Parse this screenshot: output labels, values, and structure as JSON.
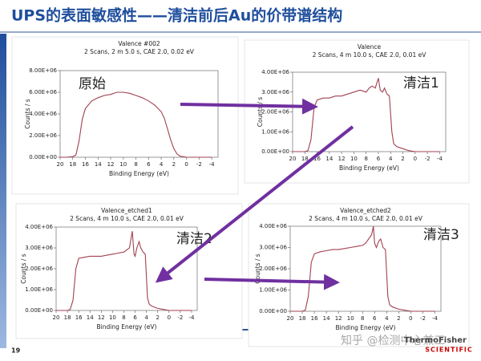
{
  "slide": {
    "title": "UPS的表面敏感性——清洁前后Au的价带谱结构",
    "page_number": "19",
    "watermark": "知乎 @检测中心兼工",
    "logo": "ThermoFisher",
    "logo_sub": "SCIENTIFIC"
  },
  "chart_data": [
    {
      "type": "line",
      "title": "Valence #002",
      "subtitle": "2 Scans,  2 m 5.0 s,  CAE 2.0,  0.02 eV",
      "xlabel": "Binding Energy (eV)",
      "ylabel": "Counts / s",
      "annotation": "原始",
      "color": "#a04050",
      "xlim": [
        20,
        -5
      ],
      "xticks": [
        20,
        18,
        16,
        14,
        12,
        10,
        8,
        6,
        4,
        2,
        0,
        -2,
        -4
      ],
      "ylim": [
        0,
        8000000
      ],
      "yticks": [
        {
          "value": 0,
          "label": "0.00E+00"
        },
        {
          "value": 2000000,
          "label": "2.00E+06"
        },
        {
          "value": 4000000,
          "label": "4.00E+06"
        },
        {
          "value": 6000000,
          "label": "6.00E+06"
        },
        {
          "value": 8000000,
          "label": "8.00E+06"
        }
      ],
      "x": [
        20,
        19,
        18,
        17.5,
        17,
        16.5,
        16,
        15,
        14,
        13,
        12,
        11,
        10,
        9,
        8,
        7,
        6,
        5,
        4,
        3.5,
        3,
        2.5,
        2,
        1.5,
        1,
        0,
        -2,
        -4
      ],
      "values": [
        0,
        0,
        50000,
        200000,
        1500000,
        3500000,
        4500000,
        5200000,
        5500000,
        5700000,
        5800000,
        6000000,
        6000000,
        5900000,
        5700000,
        5500000,
        5200000,
        4800000,
        4200000,
        3600000,
        2600000,
        1600000,
        800000,
        300000,
        100000,
        0,
        0,
        0
      ]
    },
    {
      "type": "line",
      "title": "Valence",
      "subtitle": "2 Scans,  4 m 10.0 s,  CAE 2.0,  0.01 eV",
      "xlabel": "Binding Energy (eV)",
      "ylabel": "Counts / s",
      "annotation": "清洁1",
      "color": "#a04050",
      "xlim": [
        20,
        -5
      ],
      "xticks": [
        20,
        18,
        16,
        14,
        12,
        10,
        8,
        6,
        4,
        2,
        0,
        -2,
        -4
      ],
      "ylim": [
        0,
        4000000
      ],
      "yticks": [
        {
          "value": 0,
          "label": "0.00E+00"
        },
        {
          "value": 1000000,
          "label": "1.00E+06"
        },
        {
          "value": 2000000,
          "label": "2.00E+06"
        },
        {
          "value": 3000000,
          "label": "3.00E+06"
        },
        {
          "value": 4000000,
          "label": "4.00E+06"
        }
      ],
      "x": [
        20,
        18,
        17.5,
        17,
        16.5,
        16,
        15,
        14,
        13,
        12,
        11,
        10,
        9,
        8,
        7.5,
        7,
        6.5,
        6.2,
        6,
        5.7,
        5.3,
        5,
        4.6,
        4.2,
        3.8,
        3.5,
        3,
        2,
        1,
        0,
        -2,
        -4
      ],
      "values": [
        0,
        0,
        50000,
        600000,
        2200000,
        2600000,
        2700000,
        2700000,
        2800000,
        2800000,
        2900000,
        3000000,
        3100000,
        3000000,
        3200000,
        3300000,
        3200000,
        3500000,
        3700000,
        3100000,
        3000000,
        3200000,
        2900000,
        2800000,
        1000000,
        400000,
        250000,
        150000,
        50000,
        0,
        0,
        0
      ]
    },
    {
      "type": "line",
      "title": "Valence_etched1",
      "subtitle": "2 Scans,  4 m 10.0 s,  CAE 2.0,  0.01 eV",
      "xlabel": "Binding Energy (eV)",
      "ylabel": "Counts / s",
      "annotation": "清洁2",
      "color": "#a04050",
      "xlim": [
        20,
        -5
      ],
      "xticks": [
        20,
        18,
        16,
        14,
        12,
        10,
        8,
        6,
        4,
        2,
        0,
        -2,
        -4
      ],
      "ylim": [
        0,
        4000000
      ],
      "yticks": [
        {
          "value": 0,
          "label": "0.00E+00"
        },
        {
          "value": 1000000,
          "label": "1.00E+06"
        },
        {
          "value": 2000000,
          "label": "2.00E+06"
        },
        {
          "value": 3000000,
          "label": "3.00E+06"
        },
        {
          "value": 4000000,
          "label": "4.00E+06"
        }
      ],
      "x": [
        20,
        18,
        17.5,
        17,
        16.5,
        16,
        15,
        14,
        13,
        12,
        11,
        10,
        9,
        8,
        7.5,
        7,
        6.5,
        6.2,
        6,
        5.7,
        5.3,
        5,
        4.6,
        4.2,
        3.8,
        3.5,
        3,
        2,
        1,
        0,
        -2,
        -4
      ],
      "values": [
        0,
        0,
        50000,
        500000,
        2000000,
        2500000,
        2550000,
        2600000,
        2600000,
        2600000,
        2650000,
        2700000,
        2750000,
        2800000,
        2900000,
        3000000,
        3800000,
        2700000,
        2600000,
        3000000,
        3300000,
        3000000,
        2800000,
        2700000,
        600000,
        300000,
        200000,
        100000,
        50000,
        0,
        0,
        0
      ]
    },
    {
      "type": "line",
      "title": "Valence_etched2",
      "subtitle": "2 Scans,  4 m 10.0 s,  CAE 2.0,  0.01 eV",
      "xlabel": "Binding Energy (eV)",
      "ylabel": "Counts / s",
      "annotation": "清洁3",
      "color": "#a04050",
      "xlim": [
        20,
        -5
      ],
      "xticks": [
        20,
        18,
        16,
        14,
        12,
        10,
        8,
        6,
        4,
        2,
        0,
        -2,
        -4
      ],
      "ylim": [
        0,
        4000000
      ],
      "yticks": [
        {
          "value": 0,
          "label": "0.00E+00"
        },
        {
          "value": 1000000,
          "label": "1.00E+06"
        },
        {
          "value": 2000000,
          "label": "2.00E+06"
        },
        {
          "value": 3000000,
          "label": "3.00E+06"
        },
        {
          "value": 4000000,
          "label": "4.00E+06"
        }
      ],
      "x": [
        20,
        18,
        17.5,
        17,
        16.5,
        16,
        15,
        14,
        13,
        12,
        11,
        10,
        9,
        8,
        7.5,
        7,
        6.5,
        6.2,
        6,
        5.7,
        5.3,
        5,
        4.6,
        4.2,
        3.8,
        3.5,
        3,
        2,
        1,
        0,
        -2,
        -4
      ],
      "values": [
        0,
        0,
        50000,
        700000,
        2300000,
        2700000,
        2800000,
        2850000,
        2900000,
        2900000,
        2950000,
        3000000,
        3050000,
        3100000,
        3200000,
        3400000,
        3600000,
        4000000,
        3200000,
        3000000,
        3300000,
        3400000,
        3000000,
        2900000,
        700000,
        300000,
        200000,
        100000,
        50000,
        0,
        0,
        0
      ]
    }
  ]
}
